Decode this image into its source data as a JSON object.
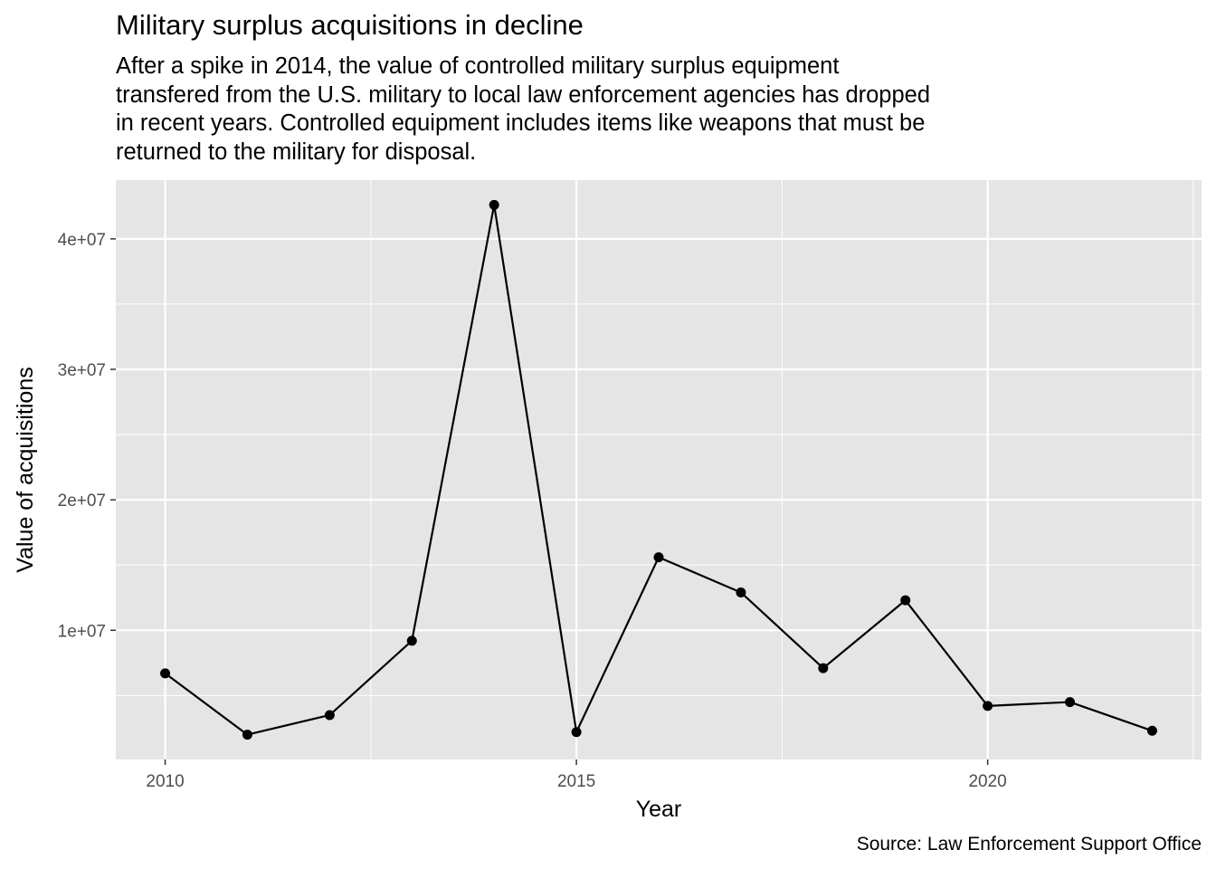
{
  "header": {
    "title": "Military surplus acquisitions in decline",
    "subtitle_lines": [
      "After a spike in 2014, the value of controlled military surplus equipment",
      "transfered from the U.S. military to local law enforcement agencies has dropped",
      "in recent years. Controlled equipment includes items like weapons that must be",
      "returned to the military for disposal."
    ]
  },
  "caption": "Source: Law Enforcement Support Office",
  "chart_data": {
    "type": "line",
    "title": "Military surplus acquisitions in decline",
    "xlabel": "Year",
    "ylabel": "Value of acquisitions",
    "x": [
      2010,
      2011,
      2012,
      2013,
      2014,
      2015,
      2016,
      2017,
      2018,
      2019,
      2020,
      2021,
      2022
    ],
    "series": [
      {
        "values": [
          6700000,
          2000000,
          3500000,
          9200000,
          42600000,
          2200000,
          15600000,
          12900000,
          7100000,
          12300000,
          4200000,
          4500000,
          2300000
        ]
      }
    ],
    "xlim": [
      2009.4,
      2022.6
    ],
    "ylim": [
      100000,
      44500000
    ],
    "x_ticks": [
      2010,
      2015,
      2020
    ],
    "x_tick_labels": [
      "2010",
      "2015",
      "2020"
    ],
    "y_ticks": [
      10000000,
      20000000,
      30000000,
      40000000
    ],
    "y_tick_labels": [
      "1e+07",
      "2e+07",
      "3e+07",
      "4e+07"
    ],
    "grid": true,
    "colors": {
      "panel": "#e5e5e5",
      "grid": "#ffffff",
      "line": "#000000",
      "tick_text": "#4d4d4d"
    }
  }
}
